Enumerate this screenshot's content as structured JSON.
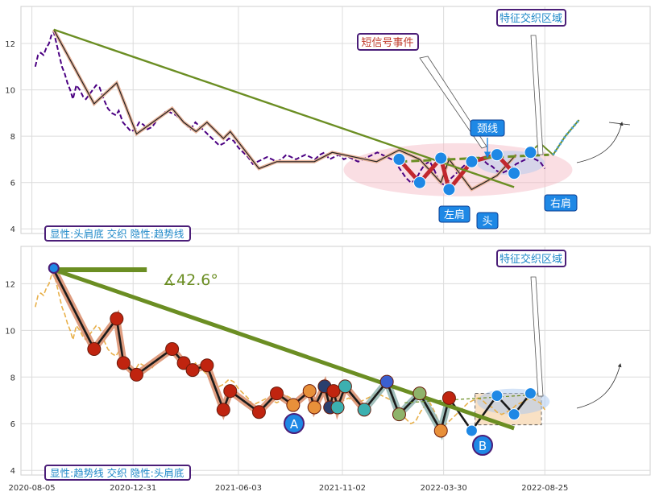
{
  "chart_data": [
    {
      "type": "line",
      "panel": "top",
      "xlim": [
        "2020-07-20",
        "2023-01-26"
      ],
      "ylim": [
        3.8,
        13.6
      ],
      "y_ticks": [
        4,
        6,
        8,
        10,
        12
      ],
      "grid": true,
      "price": {
        "x": [
          "2020-08-10",
          "2020-08-14",
          "2020-08-18",
          "2020-08-22",
          "2020-08-26",
          "2020-08-30",
          "2020-09-03",
          "2020-09-06",
          "2020-09-10",
          "2020-09-14",
          "2020-09-18",
          "2020-09-22",
          "2020-09-26",
          "2020-09-30",
          "2020-10-04",
          "2020-10-09",
          "2020-10-14",
          "2020-10-19",
          "2020-10-23",
          "2020-10-28",
          "2020-11-02",
          "2020-11-07",
          "2020-11-12",
          "2020-11-18",
          "2020-11-24",
          "2020-11-30",
          "2020-12-06",
          "2020-12-10",
          "2020-12-16",
          "2020-12-22",
          "2020-12-28",
          "2021-01-03",
          "2021-01-09",
          "2021-01-15",
          "2021-01-21",
          "2021-01-28",
          "2021-02-04",
          "2021-02-11",
          "2021-02-18",
          "2021-02-25",
          "2021-03-04",
          "2021-03-11",
          "2021-03-18",
          "2021-03-25",
          "2021-04-01",
          "2021-04-08",
          "2021-04-15",
          "2021-04-22",
          "2021-04-29",
          "2021-05-06",
          "2021-05-13",
          "2021-05-20",
          "2021-05-27",
          "2021-06-03",
          "2021-06-10",
          "2021-06-17",
          "2021-06-24",
          "2021-07-01",
          "2021-07-08",
          "2021-07-15",
          "2021-07-22",
          "2021-07-29",
          "2021-08-05",
          "2021-08-12",
          "2021-08-19",
          "2021-08-26",
          "2021-09-02",
          "2021-09-09",
          "2021-09-16",
          "2021-09-23",
          "2021-09-30",
          "2021-10-07",
          "2021-10-14",
          "2021-10-21",
          "2021-10-28",
          "2021-11-04",
          "2021-11-11",
          "2021-11-18",
          "2021-11-25",
          "2021-12-02",
          "2021-12-09",
          "2021-12-16",
          "2021-12-23",
          "2021-12-30",
          "2022-01-06",
          "2022-01-13",
          "2022-01-20",
          "2022-01-27",
          "2022-02-03",
          "2022-02-10",
          "2022-02-17",
          "2022-02-24",
          "2022-03-03",
          "2022-03-10",
          "2022-03-17",
          "2022-03-24",
          "2022-03-31",
          "2022-04-07",
          "2022-04-14",
          "2022-04-21",
          "2022-04-28",
          "2022-05-05",
          "2022-05-12",
          "2022-05-19",
          "2022-05-26",
          "2022-06-02",
          "2022-06-09",
          "2022-06-16",
          "2022-06-23",
          "2022-06-30",
          "2022-07-07",
          "2022-07-14",
          "2022-07-21",
          "2022-07-28",
          "2022-08-04",
          "2022-08-11",
          "2022-08-18",
          "2022-08-25"
        ],
        "y": [
          11.0,
          11.5,
          11.6,
          11.5,
          11.8,
          12.0,
          12.4,
          12.5,
          12.0,
          11.5,
          11.0,
          10.7,
          10.3,
          10.0,
          9.6,
          10.2,
          10.0,
          9.7,
          9.6,
          9.8,
          10.0,
          10.2,
          10.1,
          9.6,
          9.2,
          9.0,
          8.9,
          9.1,
          8.6,
          8.4,
          8.2,
          8.3,
          8.6,
          8.5,
          8.3,
          8.4,
          8.7,
          8.9,
          9.1,
          9.0,
          8.9,
          8.7,
          8.5,
          8.3,
          8.6,
          8.4,
          8.2,
          8.0,
          7.8,
          7.6,
          7.7,
          7.9,
          7.8,
          7.5,
          7.3,
          7.1,
          6.8,
          6.9,
          7.0,
          7.1,
          7.0,
          6.9,
          7.0,
          7.2,
          7.1,
          7.0,
          7.1,
          7.2,
          7.1,
          7.0,
          7.2,
          7.3,
          7.0,
          7.1,
          7.2,
          7.0,
          7.1,
          7.0,
          6.9,
          7.0,
          7.1,
          7.2,
          7.3,
          7.2,
          7.1,
          7.0,
          6.8,
          6.5,
          6.2,
          6.0,
          6.1,
          6.5,
          6.8,
          6.9,
          6.5,
          6.0,
          5.9,
          6.1,
          6.3,
          6.5,
          6.7,
          6.9,
          7.0,
          7.1,
          7.0,
          6.8,
          6.7,
          6.5,
          6.4,
          6.5,
          6.6,
          6.8,
          6.9,
          7.0,
          7.1,
          7.0,
          6.9,
          6.6
        ]
      },
      "zigzag": {
        "x": [
          "2020-09-06",
          "2020-11-04",
          "2020-12-07",
          "2021-01-05",
          "2021-02-26",
          "2021-03-15",
          "2021-04-02",
          "2021-04-18",
          "2021-05-12",
          "2021-05-22",
          "2021-07-03",
          "2021-07-29",
          "2021-09-22",
          "2021-10-18",
          "2021-12-22",
          "2022-01-24",
          "2022-02-23",
          "2022-03-26",
          "2022-04-07",
          "2022-05-10",
          "2022-06-16",
          "2022-07-14"
        ],
        "y": [
          12.6,
          9.4,
          10.3,
          8.1,
          9.2,
          8.6,
          8.2,
          8.6,
          7.9,
          8.2,
          6.6,
          6.9,
          6.9,
          7.3,
          6.9,
          7.4,
          7.0,
          6.0,
          7.0,
          5.7,
          6.3,
          7.2
        ]
      },
      "trend_line": {
        "x": [
          "2020-09-06",
          "2022-07-11"
        ],
        "y": [
          12.6,
          5.8
        ]
      },
      "neckline": {
        "x": [
          "2022-01-24",
          "2022-08-31"
        ],
        "y": [
          6.9,
          7.2
        ]
      },
      "pattern_points": {
        "x": [
          "2022-01-24",
          "2022-02-23",
          "2022-03-26",
          "2022-04-07",
          "2022-05-10",
          "2022-06-16",
          "2022-07-11",
          "2022-08-04"
        ],
        "y": [
          7.0,
          6.0,
          7.05,
          5.7,
          6.9,
          7.2,
          6.4,
          7.3
        ]
      },
      "projection": {
        "x": [
          "2022-08-04",
          "2022-08-18",
          "2022-09-06",
          "2022-09-24",
          "2022-10-14"
        ],
        "y": [
          7.3,
          7.7,
          7.2,
          8.0,
          8.7
        ]
      },
      "annotations": {
        "short_signal": "短信号事件",
        "feature_zone": "特征交织区域",
        "neckline": "颈线",
        "left_shoulder": "左肩",
        "head": "头",
        "right_shoulder": "右肩"
      },
      "legend": "显性:头肩底 交织 隐性:趋势线",
      "colors": {
        "price": "#4b0082",
        "zigzag": "#c1272d",
        "trend": "#6b8e23",
        "point": "#1e88e5",
        "ellipse": "#f4b6c0"
      }
    },
    {
      "type": "line",
      "panel": "bottom",
      "xlim": [
        "2020-07-20",
        "2023-01-26"
      ],
      "ylim": [
        3.8,
        13.6
      ],
      "y_ticks": [
        4,
        6,
        8,
        10,
        12
      ],
      "x_ticks": [
        "2020-08-05",
        "2020-12-31",
        "2021-06-03",
        "2021-11-02",
        "2022-03-30",
        "2022-08-25"
      ],
      "grid": true,
      "price": {
        "x": [
          "2020-08-10",
          "2020-08-14",
          "2020-08-18",
          "2020-08-22",
          "2020-08-26",
          "2020-08-30",
          "2020-09-03",
          "2020-09-06",
          "2020-09-10",
          "2020-09-14",
          "2020-09-18",
          "2020-09-22",
          "2020-09-26",
          "2020-09-30",
          "2020-10-04",
          "2020-10-09",
          "2020-10-14",
          "2020-10-19",
          "2020-10-23",
          "2020-10-28",
          "2020-11-02",
          "2020-11-07",
          "2020-11-12",
          "2020-11-18",
          "2020-11-24",
          "2020-11-30",
          "2020-12-06",
          "2020-12-10",
          "2020-12-16",
          "2020-12-22",
          "2020-12-28",
          "2021-01-03",
          "2021-01-09",
          "2021-01-15",
          "2021-01-21",
          "2021-01-28",
          "2021-02-04",
          "2021-02-11",
          "2021-02-18",
          "2021-02-25",
          "2021-03-04",
          "2021-03-11",
          "2021-03-18",
          "2021-03-25",
          "2021-04-01",
          "2021-04-08",
          "2021-04-15",
          "2021-04-22",
          "2021-04-29",
          "2021-05-06",
          "2021-05-13",
          "2021-05-20",
          "2021-05-27",
          "2021-06-03",
          "2021-06-10",
          "2021-06-17",
          "2021-06-24",
          "2021-07-01",
          "2021-07-08",
          "2021-07-15",
          "2021-07-22",
          "2021-07-29",
          "2021-08-05",
          "2021-08-12",
          "2021-08-19",
          "2021-08-26",
          "2021-09-02",
          "2021-09-09",
          "2021-09-16",
          "2021-09-23",
          "2021-09-30",
          "2021-10-07",
          "2021-10-14",
          "2021-10-21",
          "2021-10-28",
          "2021-11-04",
          "2021-11-11",
          "2021-11-18",
          "2021-11-25",
          "2021-12-02",
          "2021-12-09",
          "2021-12-16",
          "2021-12-23",
          "2021-12-30",
          "2022-01-06",
          "2022-01-13",
          "2022-01-20",
          "2022-01-27",
          "2022-02-03",
          "2022-02-10",
          "2022-02-17",
          "2022-02-24",
          "2022-03-03",
          "2022-03-10",
          "2022-03-17",
          "2022-03-24",
          "2022-03-31",
          "2022-04-07",
          "2022-04-14",
          "2022-04-21",
          "2022-04-28",
          "2022-05-05",
          "2022-05-12",
          "2022-05-19",
          "2022-05-26",
          "2022-06-02",
          "2022-06-09",
          "2022-06-16",
          "2022-06-23",
          "2022-06-30",
          "2022-07-07",
          "2022-07-14",
          "2022-07-21",
          "2022-07-28",
          "2022-08-04",
          "2022-08-11",
          "2022-08-18",
          "2022-08-25"
        ],
        "y": [
          11.0,
          11.5,
          11.6,
          11.5,
          11.8,
          12.0,
          12.4,
          12.5,
          12.0,
          11.5,
          11.0,
          10.7,
          10.3,
          10.0,
          9.6,
          10.2,
          10.0,
          9.7,
          9.6,
          9.8,
          10.0,
          10.2,
          10.1,
          9.6,
          9.2,
          9.0,
          8.9,
          9.1,
          8.6,
          8.4,
          8.2,
          8.3,
          8.6,
          8.5,
          8.3,
          8.4,
          8.7,
          8.9,
          9.1,
          9.0,
          8.9,
          8.7,
          8.5,
          8.3,
          8.6,
          8.4,
          8.2,
          8.0,
          7.8,
          7.6,
          7.7,
          7.9,
          7.8,
          7.5,
          7.3,
          7.1,
          6.8,
          6.9,
          7.0,
          7.1,
          7.0,
          6.9,
          7.0,
          7.2,
          7.1,
          7.0,
          7.1,
          7.2,
          7.1,
          7.0,
          7.2,
          7.3,
          7.0,
          7.1,
          7.2,
          7.0,
          7.1,
          7.0,
          6.9,
          7.0,
          7.1,
          7.2,
          7.3,
          7.2,
          7.1,
          7.0,
          6.8,
          6.5,
          6.2,
          6.0,
          6.1,
          6.5,
          6.8,
          6.9,
          6.5,
          6.0,
          5.9,
          6.1,
          6.3,
          6.5,
          6.7,
          6.9,
          7.0,
          7.1,
          7.0,
          6.8,
          6.7,
          6.5,
          6.4,
          6.5,
          6.6,
          6.8,
          6.9,
          7.0,
          7.1,
          7.0,
          6.9,
          6.6
        ]
      },
      "zigzag": {
        "x": [
          "2020-09-06",
          "2020-11-04",
          "2020-12-07",
          "2020-12-17",
          "2021-01-05",
          "2021-02-26",
          "2021-03-15",
          "2021-03-28",
          "2021-04-18",
          "2021-05-12",
          "2021-05-22",
          "2021-07-03",
          "2021-07-29",
          "2021-08-22",
          "2021-09-15",
          "2021-09-22",
          "2021-10-07",
          "2021-10-15",
          "2021-10-20",
          "2021-10-26",
          "2021-11-06",
          "2021-12-04",
          "2022-01-06",
          "2022-01-24",
          "2022-02-23",
          "2022-03-26",
          "2022-04-07",
          "2022-05-10",
          "2022-06-16",
          "2022-07-11",
          "2022-08-04"
        ],
        "y": [
          12.6,
          9.2,
          10.5,
          8.6,
          8.1,
          9.2,
          8.6,
          8.3,
          8.5,
          6.6,
          7.4,
          6.5,
          7.3,
          6.8,
          7.4,
          6.7,
          7.6,
          6.7,
          7.4,
          6.7,
          7.6,
          6.6,
          7.8,
          6.4,
          7.3,
          5.7,
          7.1,
          5.7,
          7.2,
          6.4,
          7.3
        ]
      },
      "trend_line": {
        "x": [
          "2020-09-06",
          "2022-07-11"
        ],
        "y": [
          12.6,
          5.8
        ]
      },
      "angle_line": {
        "x": [
          "2020-09-06",
          "2021-01-20"
        ],
        "y": [
          12.6,
          12.6
        ]
      },
      "angle_label": "∡42.6°",
      "markers": {
        "A": "A",
        "B": "B"
      },
      "annotations": {
        "feature_zone": "特征交织区域"
      },
      "legend": "显性:趋势线 交织 隐性:头肩底",
      "colors": {
        "price": "#e8b04a",
        "zigzag": "#1a1a1a",
        "band": "#d98c6a",
        "trend": "#6b8e23",
        "node": "#c0240f",
        "node2": "#e8903a"
      }
    }
  ]
}
